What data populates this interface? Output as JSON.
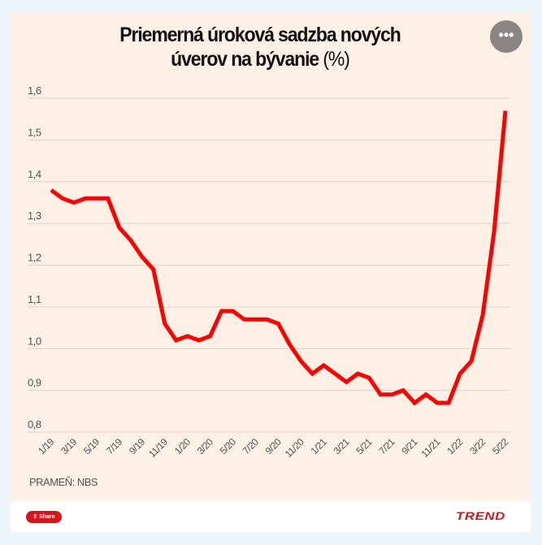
{
  "header": {
    "title_bold": "Priemerná úroková sadzba nových úverov na bývanie",
    "title_unit": "(%)",
    "menu_icon": "more-dots-icon"
  },
  "footer": {
    "source": "PRAMEŇ: NBS",
    "share_label": "Share",
    "logo": "TREND"
  },
  "colors": {
    "line": "#ff0000",
    "background": "#fdf0e4",
    "grid": "#ddd3ca"
  },
  "chart_data": {
    "type": "line",
    "title": "Priemerná úroková sadzba nových úverov na bývanie (%)",
    "xlabel": "",
    "ylabel": "",
    "ylim": [
      0.8,
      1.6
    ],
    "yticks": [
      "0,8",
      "0,9",
      "1,0",
      "1,1",
      "1,2",
      "1,3",
      "1,4",
      "1,5",
      "1,6"
    ],
    "ytick_values": [
      0.8,
      0.9,
      1.0,
      1.1,
      1.2,
      1.3,
      1.4,
      1.5,
      1.6
    ],
    "xticks": [
      "1/19",
      "3/19",
      "5/19",
      "7/19",
      "9/19",
      "11/19",
      "1/20",
      "3/20",
      "5/20",
      "7/20",
      "9/20",
      "11/20",
      "1/21",
      "3/21",
      "5/21",
      "7/21",
      "9/21",
      "11/21",
      "1/22",
      "3/22",
      "5/22"
    ],
    "grid": true,
    "x": [
      "1/19",
      "2/19",
      "3/19",
      "4/19",
      "5/19",
      "6/19",
      "7/19",
      "8/19",
      "9/19",
      "10/19",
      "11/19",
      "12/19",
      "1/20",
      "2/20",
      "3/20",
      "4/20",
      "5/20",
      "6/20",
      "7/20",
      "8/20",
      "9/20",
      "10/20",
      "11/20",
      "12/20",
      "1/21",
      "2/21",
      "3/21",
      "4/21",
      "5/21",
      "6/21",
      "7/21",
      "8/21",
      "9/21",
      "10/21",
      "11/21",
      "12/21",
      "1/22",
      "2/22",
      "3/22",
      "4/22",
      "5/22"
    ],
    "series": [
      {
        "values": [
          1.38,
          1.36,
          1.35,
          1.36,
          1.36,
          1.36,
          1.29,
          1.26,
          1.22,
          1.19,
          1.06,
          1.02,
          1.03,
          1.02,
          1.03,
          1.09,
          1.09,
          1.07,
          1.07,
          1.07,
          1.06,
          1.01,
          0.97,
          0.94,
          0.96,
          0.94,
          0.92,
          0.94,
          0.93,
          0.89,
          0.89,
          0.9,
          0.87,
          0.89,
          0.87,
          0.87,
          0.94,
          0.97,
          1.08,
          1.28,
          1.57
        ]
      }
    ]
  }
}
